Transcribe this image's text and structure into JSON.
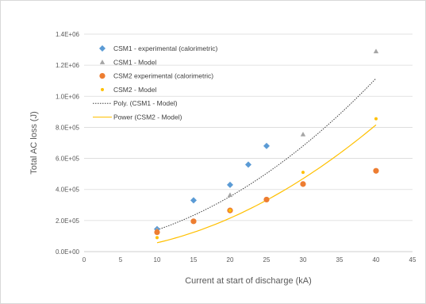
{
  "chart_data": {
    "type": "scatter",
    "title": "",
    "xlabel": "Current at start of discharge (kA)",
    "ylabel": "Total AC loss (J)",
    "xlim": [
      0,
      45
    ],
    "ylim": [
      0,
      1400000
    ],
    "x_ticks": [
      0,
      5,
      10,
      15,
      20,
      25,
      30,
      35,
      40,
      45
    ],
    "y_ticks": [
      0,
      200000,
      400000,
      600000,
      800000,
      1000000,
      1200000,
      1400000
    ],
    "x_tick_labels": [
      "0",
      "5",
      "10",
      "15",
      "20",
      "25",
      "30",
      "35",
      "40",
      "45"
    ],
    "y_tick_labels": [
      "0.0E+00",
      "2.0E+05",
      "4.0E+05",
      "6.0E+05",
      "8.0E+05",
      "1.0E+06",
      "1.2E+06",
      "1.4E+06"
    ],
    "grid": "horizontal",
    "legend_position": "top-left inside",
    "series": [
      {
        "name": "CSM1 - experimental (calorimetric)",
        "marker": "diamond",
        "color": "#5B9BD5",
        "x": [
          10,
          15,
          20,
          22.5,
          25
        ],
        "y": [
          145000,
          330000,
          430000,
          560000,
          680000
        ]
      },
      {
        "name": "CSM1 - Model",
        "marker": "triangle",
        "color": "#A5A5A5",
        "x": [
          10,
          20,
          30,
          40
        ],
        "y": [
          140000,
          365000,
          755000,
          1290000
        ]
      },
      {
        "name": "CSM2 experimental (calorimetric)",
        "marker": "circle",
        "color": "#ED7D31",
        "x": [
          10,
          15,
          20,
          25,
          30,
          40
        ],
        "y": [
          125000,
          195000,
          265000,
          335000,
          435000,
          520000
        ]
      },
      {
        "name": "CSM2 - Model",
        "marker": "small-circle",
        "color": "#FFC000",
        "x": [
          10,
          20,
          30,
          40
        ],
        "y": [
          90000,
          265000,
          510000,
          855000
        ]
      }
    ],
    "trendlines": [
      {
        "name": "Poly. (CSM1 - Model)",
        "kind": "polynomial",
        "color": "#404040",
        "dash": "dotted",
        "coefficients": [
          550,
          5000,
          35000
        ]
      },
      {
        "name": "Power (CSM2 - Model)",
        "kind": "power",
        "color": "#FFC000",
        "dash": "solid",
        "coefficients": [
          685,
          1.92
        ]
      }
    ]
  }
}
